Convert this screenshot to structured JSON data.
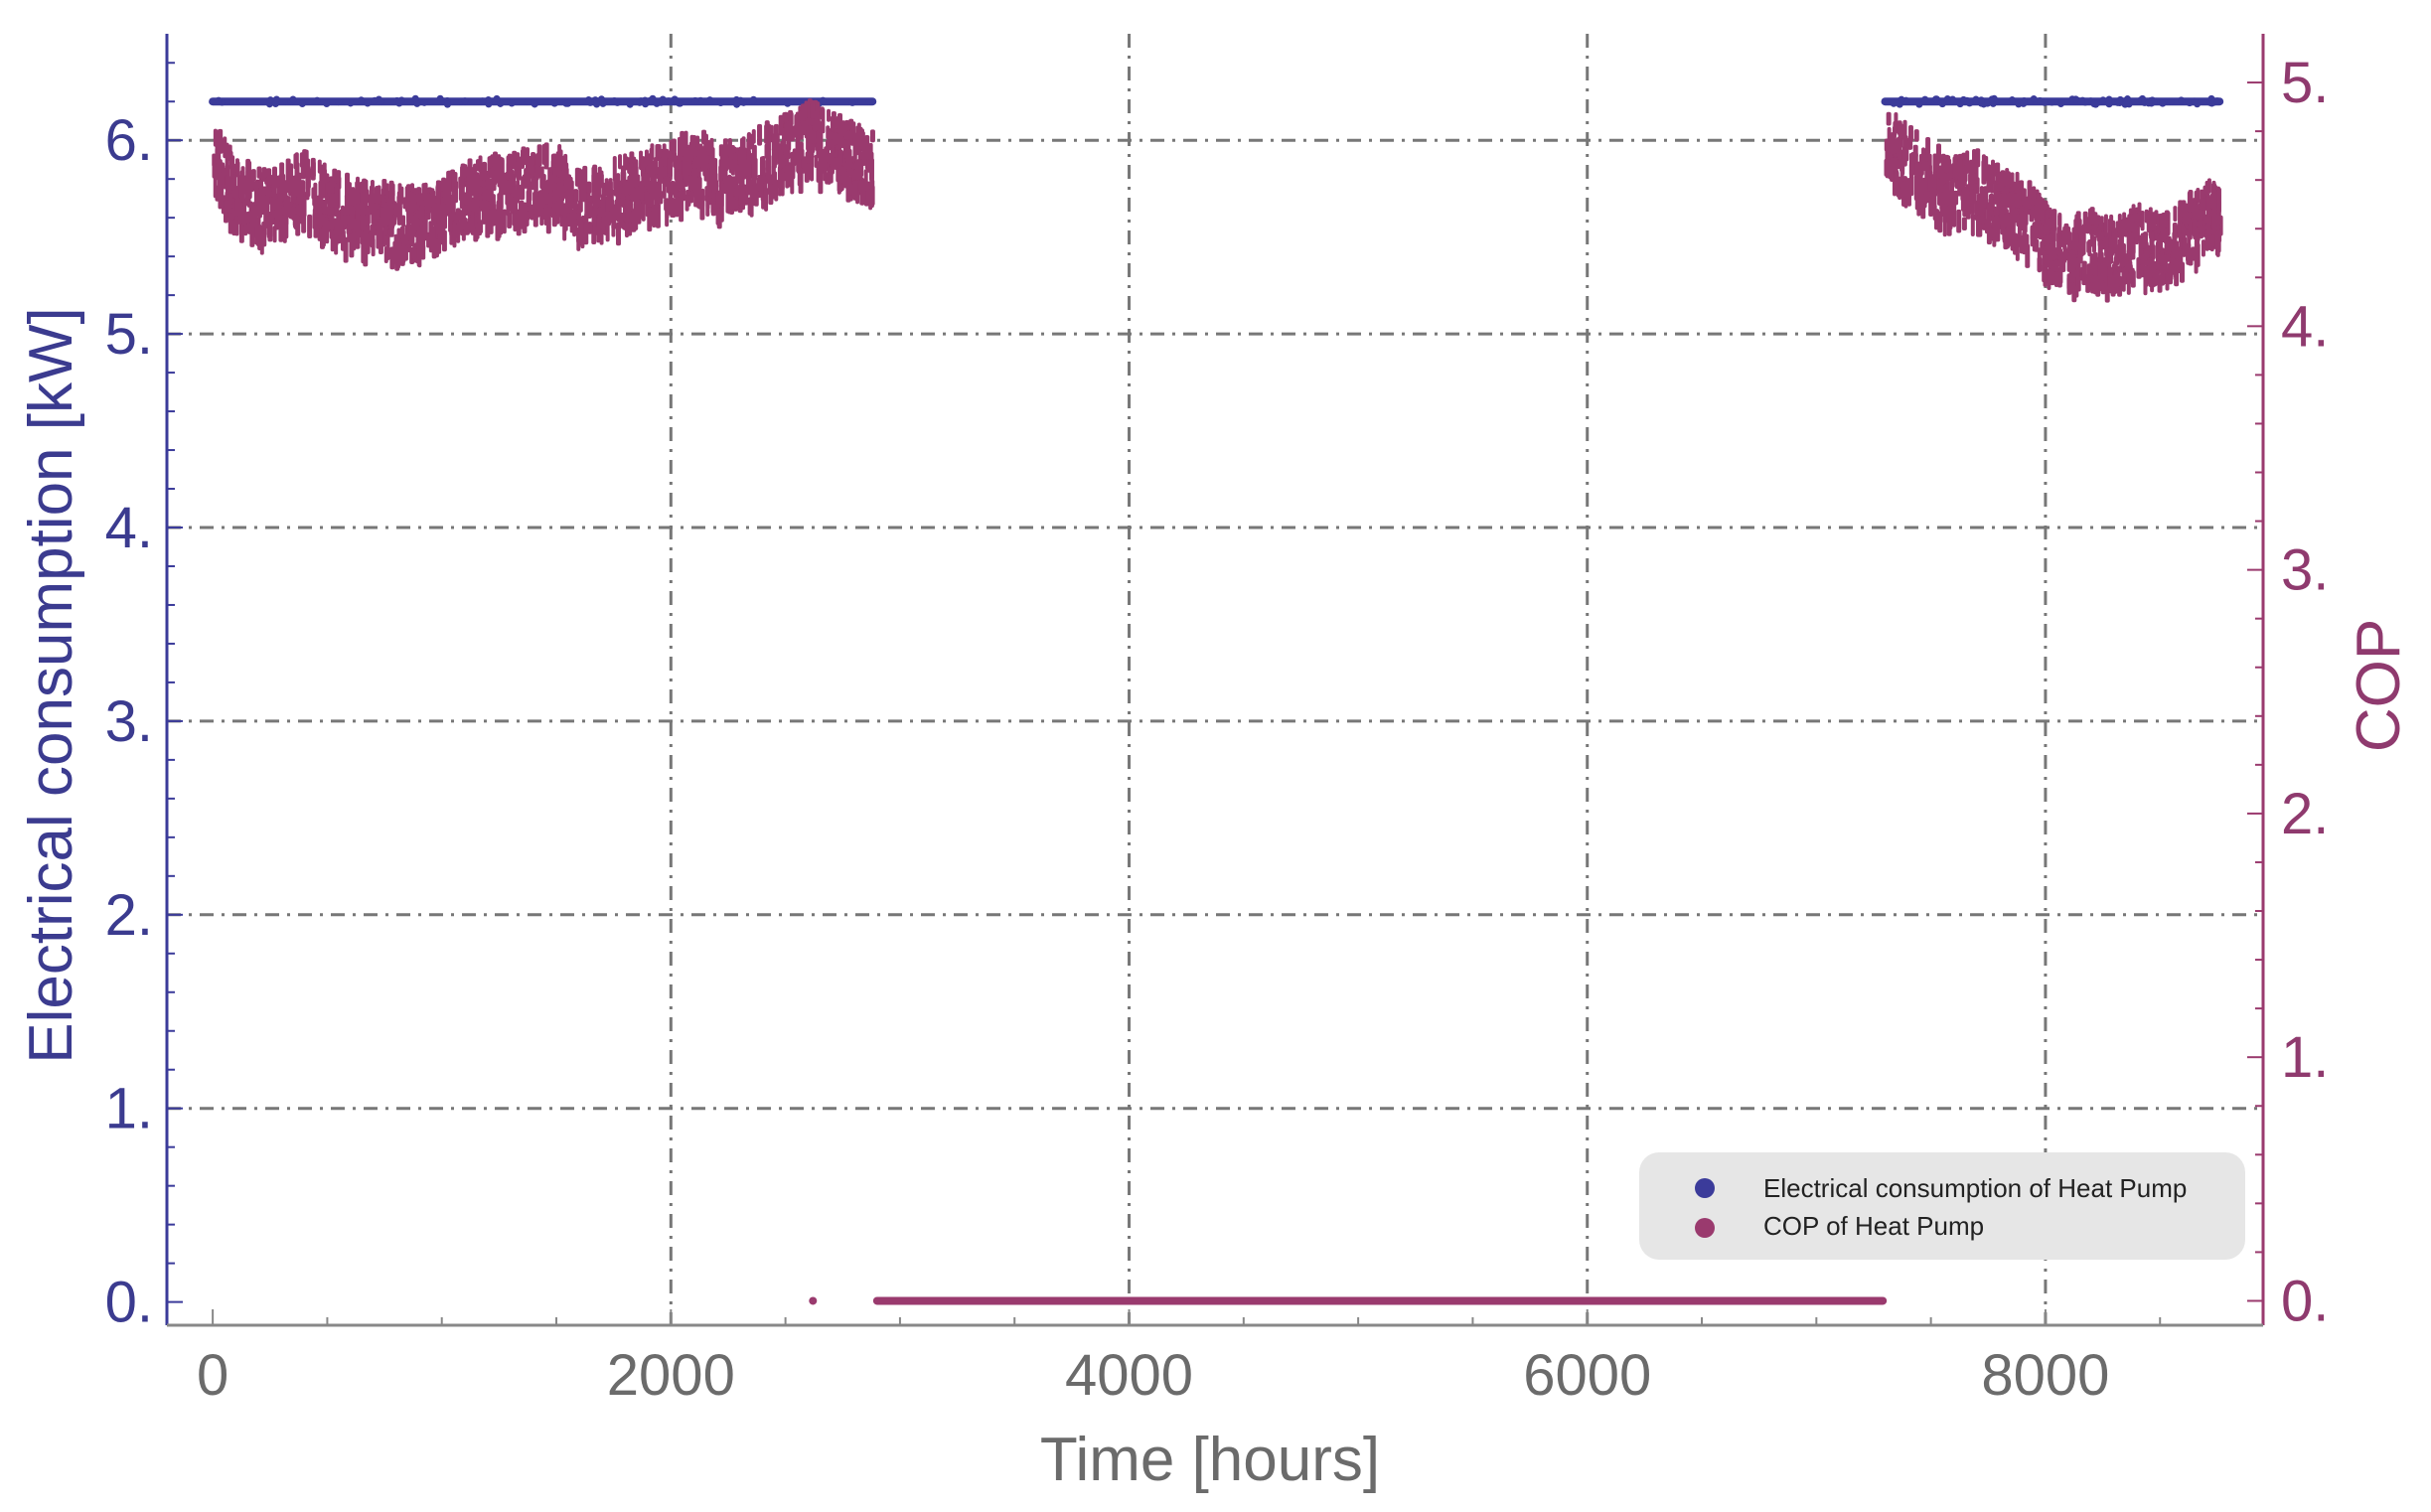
{
  "chart_data": {
    "type": "scatter",
    "title": "",
    "xlabel": "Time [hours]",
    "ylabel_left": "Electrical consumption [kW]",
    "ylabel_right": "COP",
    "xlim": [
      -200,
      8950
    ],
    "ylim_left": [
      -0.12,
      6.55
    ],
    "ylim_right": [
      -0.1,
      5.2
    ],
    "x_ticks": [
      {
        "value": 0,
        "label": "0"
      },
      {
        "value": 2000,
        "label": "2000"
      },
      {
        "value": 4000,
        "label": "4000"
      },
      {
        "value": 6000,
        "label": "6000"
      },
      {
        "value": 8000,
        "label": "8000"
      }
    ],
    "y_ticks_left": [
      {
        "value": 0,
        "label": "0."
      },
      {
        "value": 1,
        "label": "1."
      },
      {
        "value": 2,
        "label": "2."
      },
      {
        "value": 3,
        "label": "3."
      },
      {
        "value": 4,
        "label": "4."
      },
      {
        "value": 5,
        "label": "5."
      },
      {
        "value": 6,
        "label": "6."
      }
    ],
    "y_ticks_right": [
      {
        "value": 0,
        "label": "0."
      },
      {
        "value": 1,
        "label": "1."
      },
      {
        "value": 2,
        "label": "2."
      },
      {
        "value": 3,
        "label": "3."
      },
      {
        "value": 4,
        "label": "4."
      },
      {
        "value": 5,
        "label": "5."
      }
    ],
    "grid": true,
    "legend_position": "bottom-right",
    "series": [
      {
        "name": "Electrical consumption of Heat Pump",
        "axis": "left",
        "color": "#3b3b9a",
        "x": [
          0,
          2880,
          7300,
          8760
        ],
        "y": [
          6.2,
          6.2,
          6.2,
          6.2
        ]
      },
      {
        "name": "COP of Heat Pump",
        "axis": "right",
        "color": "#9a3a6e",
        "x": [
          0,
          100,
          200,
          300,
          400,
          500,
          600,
          700,
          800,
          900,
          1000,
          1100,
          1200,
          1300,
          1400,
          1500,
          1600,
          1700,
          1800,
          1900,
          2000,
          2100,
          2200,
          2300,
          2400,
          2500,
          2600,
          2700,
          2800,
          2880,
          2620,
          2900,
          7290,
          7300,
          7400,
          7500,
          7600,
          7700,
          7800,
          7900,
          8000,
          8100,
          8200,
          8300,
          8400,
          8500,
          8600,
          8700,
          8760
        ],
        "y": [
          4.72,
          4.55,
          4.5,
          4.52,
          4.58,
          4.5,
          4.47,
          4.45,
          4.43,
          4.42,
          4.47,
          4.52,
          4.55,
          4.57,
          4.58,
          4.6,
          4.5,
          4.52,
          4.55,
          4.58,
          4.63,
          4.67,
          4.6,
          4.62,
          4.68,
          4.72,
          4.78,
          4.73,
          4.68,
          4.65,
          0.0,
          0.0,
          0.0,
          4.75,
          4.68,
          4.6,
          4.55,
          4.57,
          4.5,
          4.47,
          4.35,
          4.3,
          4.33,
          4.3,
          4.35,
          4.32,
          4.38,
          4.45,
          4.48
        ]
      }
    ]
  }
}
